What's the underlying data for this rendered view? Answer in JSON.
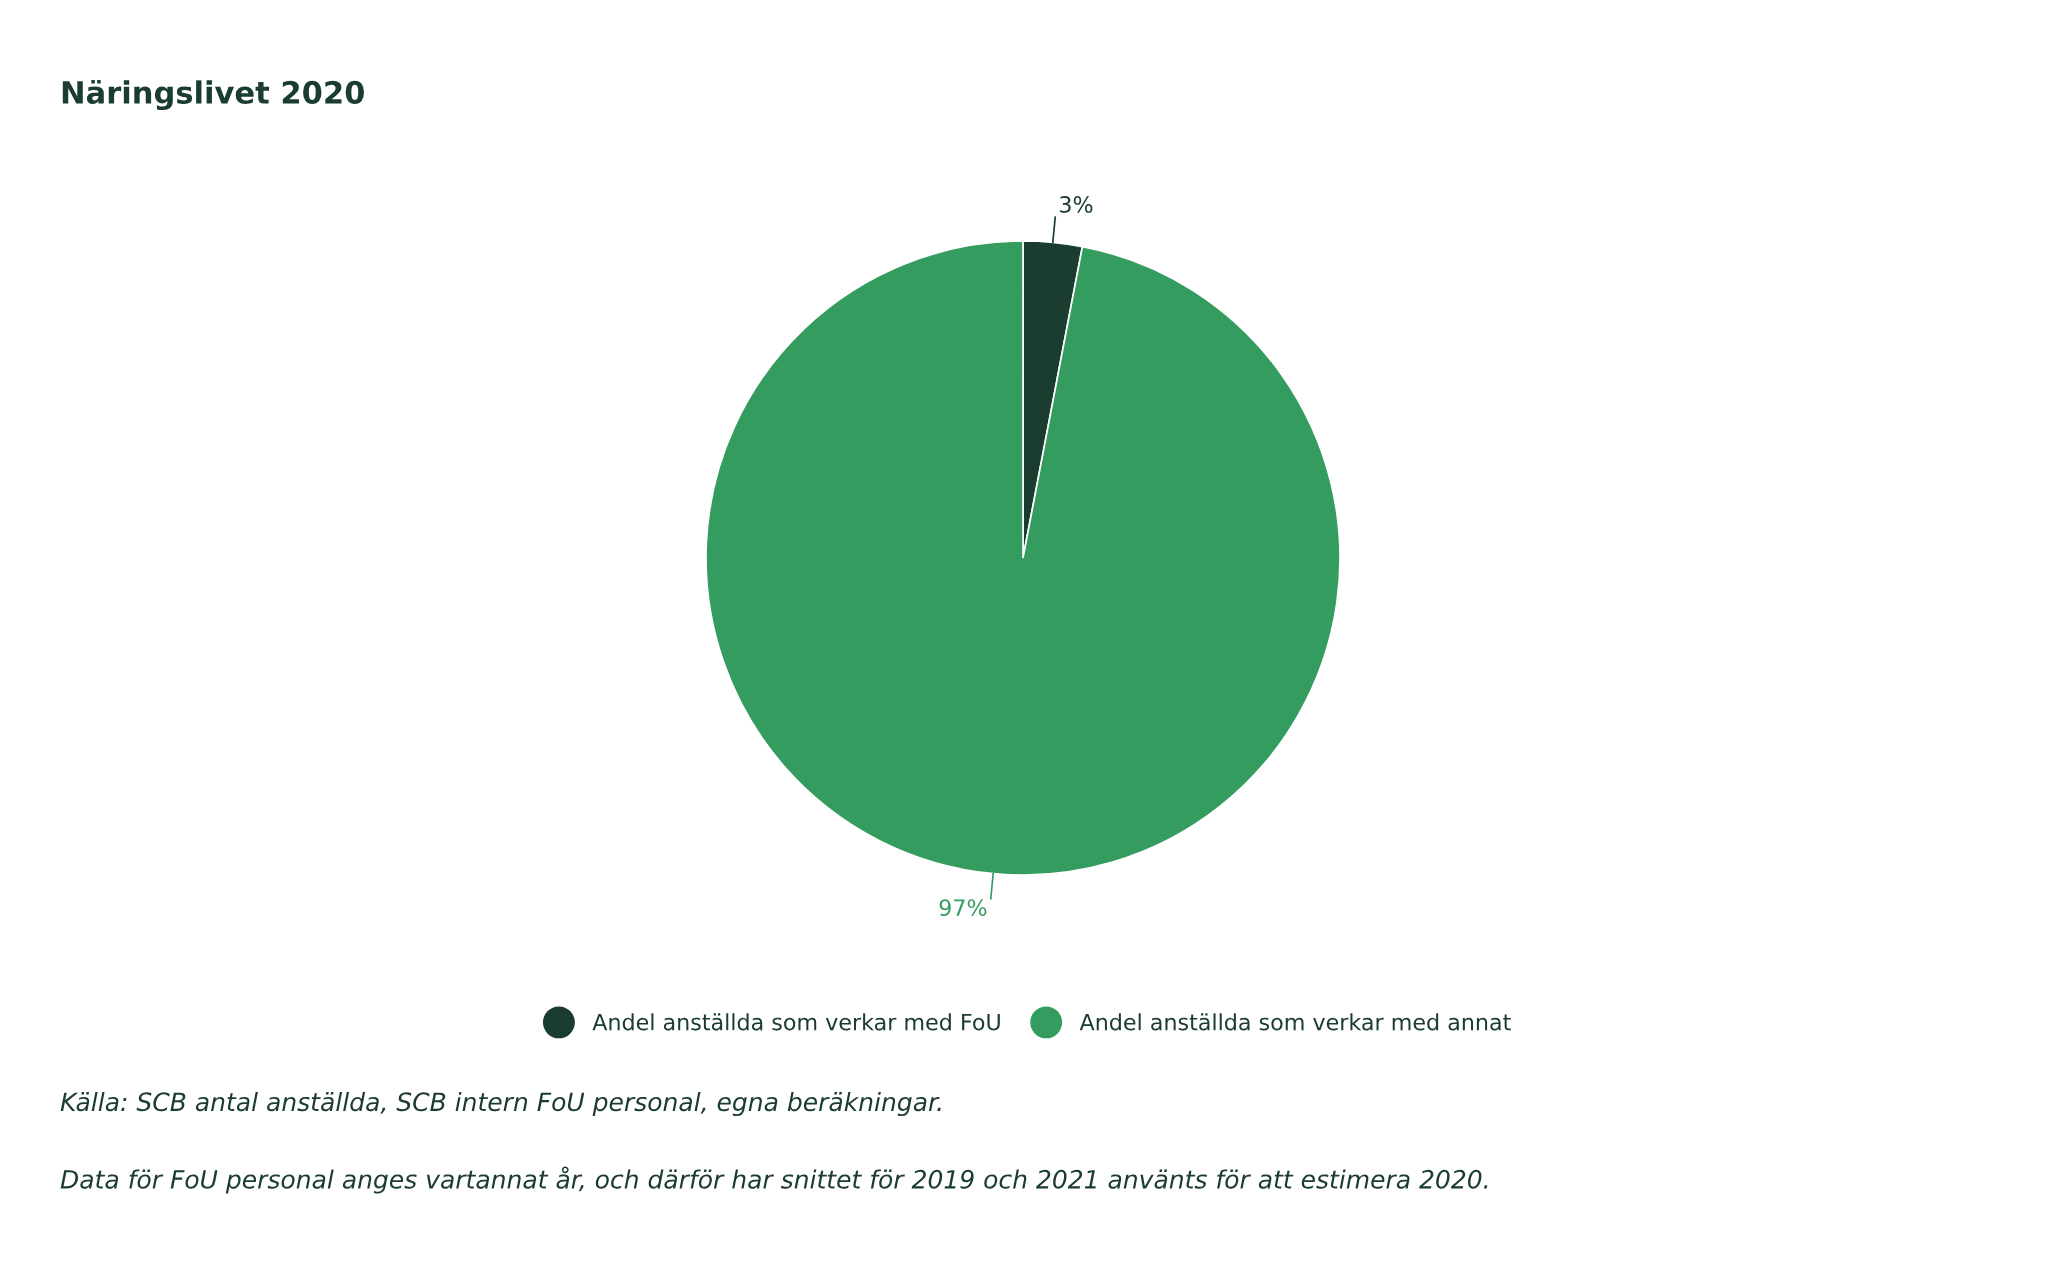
{
  "chart_data": {
    "type": "pie",
    "title": "Näringslivet 2020",
    "categories": [
      "Andel anställda som verkar med FoU",
      "Andel anställda som verkar med annat"
    ],
    "values": [
      3,
      97
    ],
    "colors": [
      "#1b3d30",
      "#359c60"
    ],
    "value_labels": [
      "3%",
      "97%"
    ],
    "legend": "bottom",
    "annotations": [
      "Källa: SCB antal anställda, SCB intern FoU personal, egna beräkningar.",
      "Data för FoU personal anges vartannat år, och därför har snittet för 2019 och 2021 använts för att estimera 2020."
    ]
  }
}
